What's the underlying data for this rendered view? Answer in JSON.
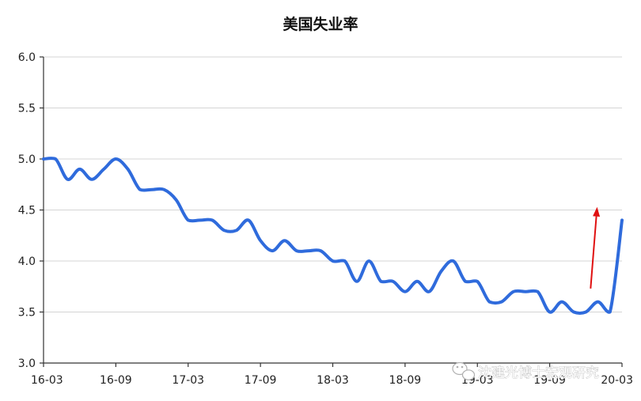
{
  "chart_data": {
    "type": "line",
    "title": "美国失业率",
    "xlabel": "",
    "ylabel": "",
    "ylim": [
      3.0,
      6.0
    ],
    "yticks": [
      "3.0",
      "3.5",
      "4.0",
      "4.5",
      "5.0",
      "5.5",
      "6.0"
    ],
    "xticks": [
      "16-03",
      "16-09",
      "17-03",
      "17-09",
      "18-03",
      "18-09",
      "19-03",
      "19-09",
      "20-03"
    ],
    "grid": true,
    "legend": "none",
    "series": [
      {
        "color": "#2f6bdc",
        "x": [
          "16-03",
          "16-04",
          "16-05",
          "16-06",
          "16-07",
          "16-08",
          "16-09",
          "16-10",
          "16-11",
          "16-12",
          "17-01",
          "17-02",
          "17-03",
          "17-04",
          "17-05",
          "17-06",
          "17-07",
          "17-08",
          "17-09",
          "17-10",
          "17-11",
          "17-12",
          "18-01",
          "18-02",
          "18-03",
          "18-04",
          "18-05",
          "18-06",
          "18-07",
          "18-08",
          "18-09",
          "18-10",
          "18-11",
          "18-12",
          "19-01",
          "19-02",
          "19-03",
          "19-04",
          "19-05",
          "19-06",
          "19-07",
          "19-08",
          "19-09",
          "19-10",
          "19-11",
          "19-12",
          "20-01",
          "20-02",
          "20-03"
        ],
        "values": [
          5.0,
          5.0,
          4.8,
          4.9,
          4.8,
          4.9,
          5.0,
          4.9,
          4.7,
          4.7,
          4.7,
          4.6,
          4.4,
          4.4,
          4.4,
          4.3,
          4.3,
          4.4,
          4.2,
          4.1,
          4.2,
          4.1,
          4.1,
          4.1,
          4.0,
          4.0,
          3.8,
          4.0,
          3.8,
          3.8,
          3.7,
          3.8,
          3.7,
          3.9,
          4.0,
          3.8,
          3.8,
          3.6,
          3.6,
          3.7,
          3.7,
          3.7,
          3.5,
          3.6,
          3.5,
          3.5,
          3.6,
          3.5,
          4.4
        ]
      }
    ],
    "annotations": [
      {
        "type": "arrow",
        "color": "#e01010",
        "from": [
          "19-12",
          3.73
        ],
        "to": [
          "20-01",
          4.53
        ]
      }
    ]
  },
  "watermark": {
    "text": "沈建光博士宏观研究",
    "icon": "wechat-icon"
  }
}
